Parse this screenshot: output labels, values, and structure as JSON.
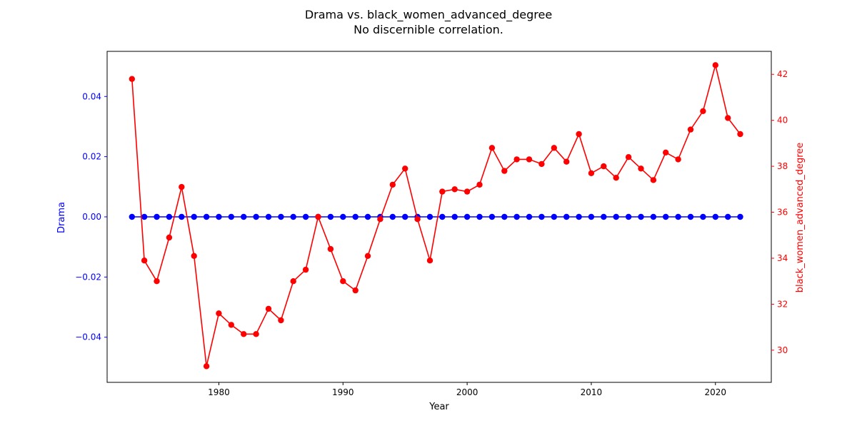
{
  "chart_data": {
    "type": "line",
    "title": "Drama vs. black_women_advanced_degree",
    "subtitle": "No discernible correlation.",
    "xlabel": "Year",
    "ylabel_left": "Drama",
    "ylabel_right": "black_women_advanced_degree",
    "xlim": [
      1971,
      2024.5
    ],
    "ylim_left": [
      -0.055,
      0.055
    ],
    "ylim_right": [
      28.6,
      43.0
    ],
    "x_ticks": [
      1980,
      1990,
      2000,
      2010,
      2020
    ],
    "y_ticks_left": [
      -0.04,
      -0.02,
      0.0,
      0.02,
      0.04
    ],
    "y_ticks_left_labels": [
      "−0.04",
      "−0.02",
      "0.00",
      "0.02",
      "0.04"
    ],
    "y_ticks_right": [
      30,
      32,
      34,
      36,
      38,
      40,
      42
    ],
    "grid": false,
    "x": [
      1973,
      1974,
      1975,
      1976,
      1977,
      1978,
      1979,
      1980,
      1981,
      1982,
      1983,
      1984,
      1985,
      1986,
      1987,
      1988,
      1989,
      1990,
      1991,
      1992,
      1993,
      1994,
      1995,
      1996,
      1997,
      1998,
      1999,
      2000,
      2001,
      2002,
      2003,
      2004,
      2005,
      2006,
      2007,
      2008,
      2009,
      2010,
      2011,
      2012,
      2013,
      2014,
      2015,
      2016,
      2017,
      2018,
      2019,
      2020,
      2021,
      2022
    ],
    "series": [
      {
        "axis": "left",
        "color": "#0000ff",
        "values": [
          0,
          0,
          0,
          0,
          0,
          0,
          0,
          0,
          0,
          0,
          0,
          0,
          0,
          0,
          0,
          0,
          0,
          0,
          0,
          0,
          0,
          0,
          0,
          0,
          0,
          0,
          0,
          0,
          0,
          0,
          0,
          0,
          0,
          0,
          0,
          0,
          0,
          0,
          0,
          0,
          0,
          0,
          0,
          0,
          0,
          0,
          0,
          0,
          0,
          0
        ]
      },
      {
        "axis": "right",
        "color": "#ff0000",
        "values": [
          41.8,
          33.9,
          33.0,
          34.9,
          37.1,
          34.1,
          29.3,
          31.6,
          31.1,
          30.7,
          30.7,
          31.8,
          31.3,
          33.0,
          33.5,
          35.8,
          34.4,
          33.0,
          32.6,
          34.1,
          35.7,
          37.2,
          37.9,
          35.7,
          33.9,
          36.9,
          37.0,
          36.9,
          37.2,
          38.8,
          37.8,
          38.3,
          38.3,
          38.1,
          38.8,
          38.2,
          39.4,
          37.7,
          38.0,
          37.5,
          38.4,
          37.9,
          37.4,
          38.6,
          38.3,
          39.6,
          40.4,
          42.4,
          40.1,
          39.4
        ]
      }
    ]
  }
}
